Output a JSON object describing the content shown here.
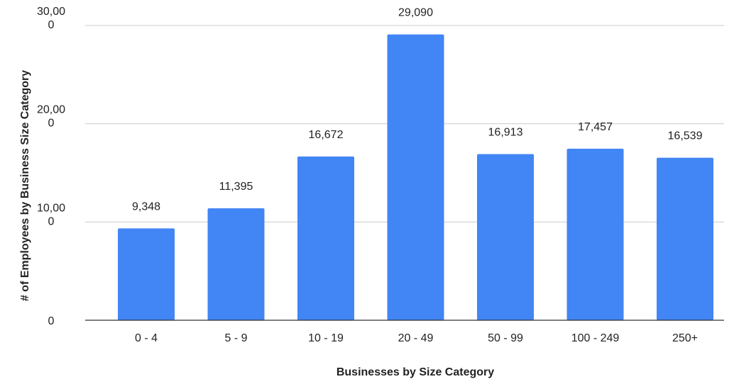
{
  "chart_data": {
    "type": "bar",
    "categories": [
      "0 - 4",
      "5 - 9",
      "10 - 19",
      "20 - 49",
      "50 - 99",
      "100 - 249",
      "250+"
    ],
    "values": [
      9348,
      11395,
      16672,
      29090,
      16913,
      17457,
      16539
    ],
    "data_labels": [
      "9,348",
      "11,395",
      "16,672",
      "29,090",
      "16,913",
      "17,457",
      "16,539"
    ],
    "xlabel": "Businesses by Size Category",
    "ylabel": "# of Employees by Business Size Category",
    "ylim": [
      0,
      30000
    ],
    "y_ticks": [
      {
        "value": 0,
        "lines": [
          "0"
        ]
      },
      {
        "value": 10000,
        "lines": [
          "10,00",
          "0"
        ]
      },
      {
        "value": 20000,
        "lines": [
          "20,00",
          "0"
        ]
      },
      {
        "value": 30000,
        "lines": [
          "30,00",
          "0"
        ]
      }
    ],
    "grid": true,
    "bar_color": "#4285f4"
  }
}
